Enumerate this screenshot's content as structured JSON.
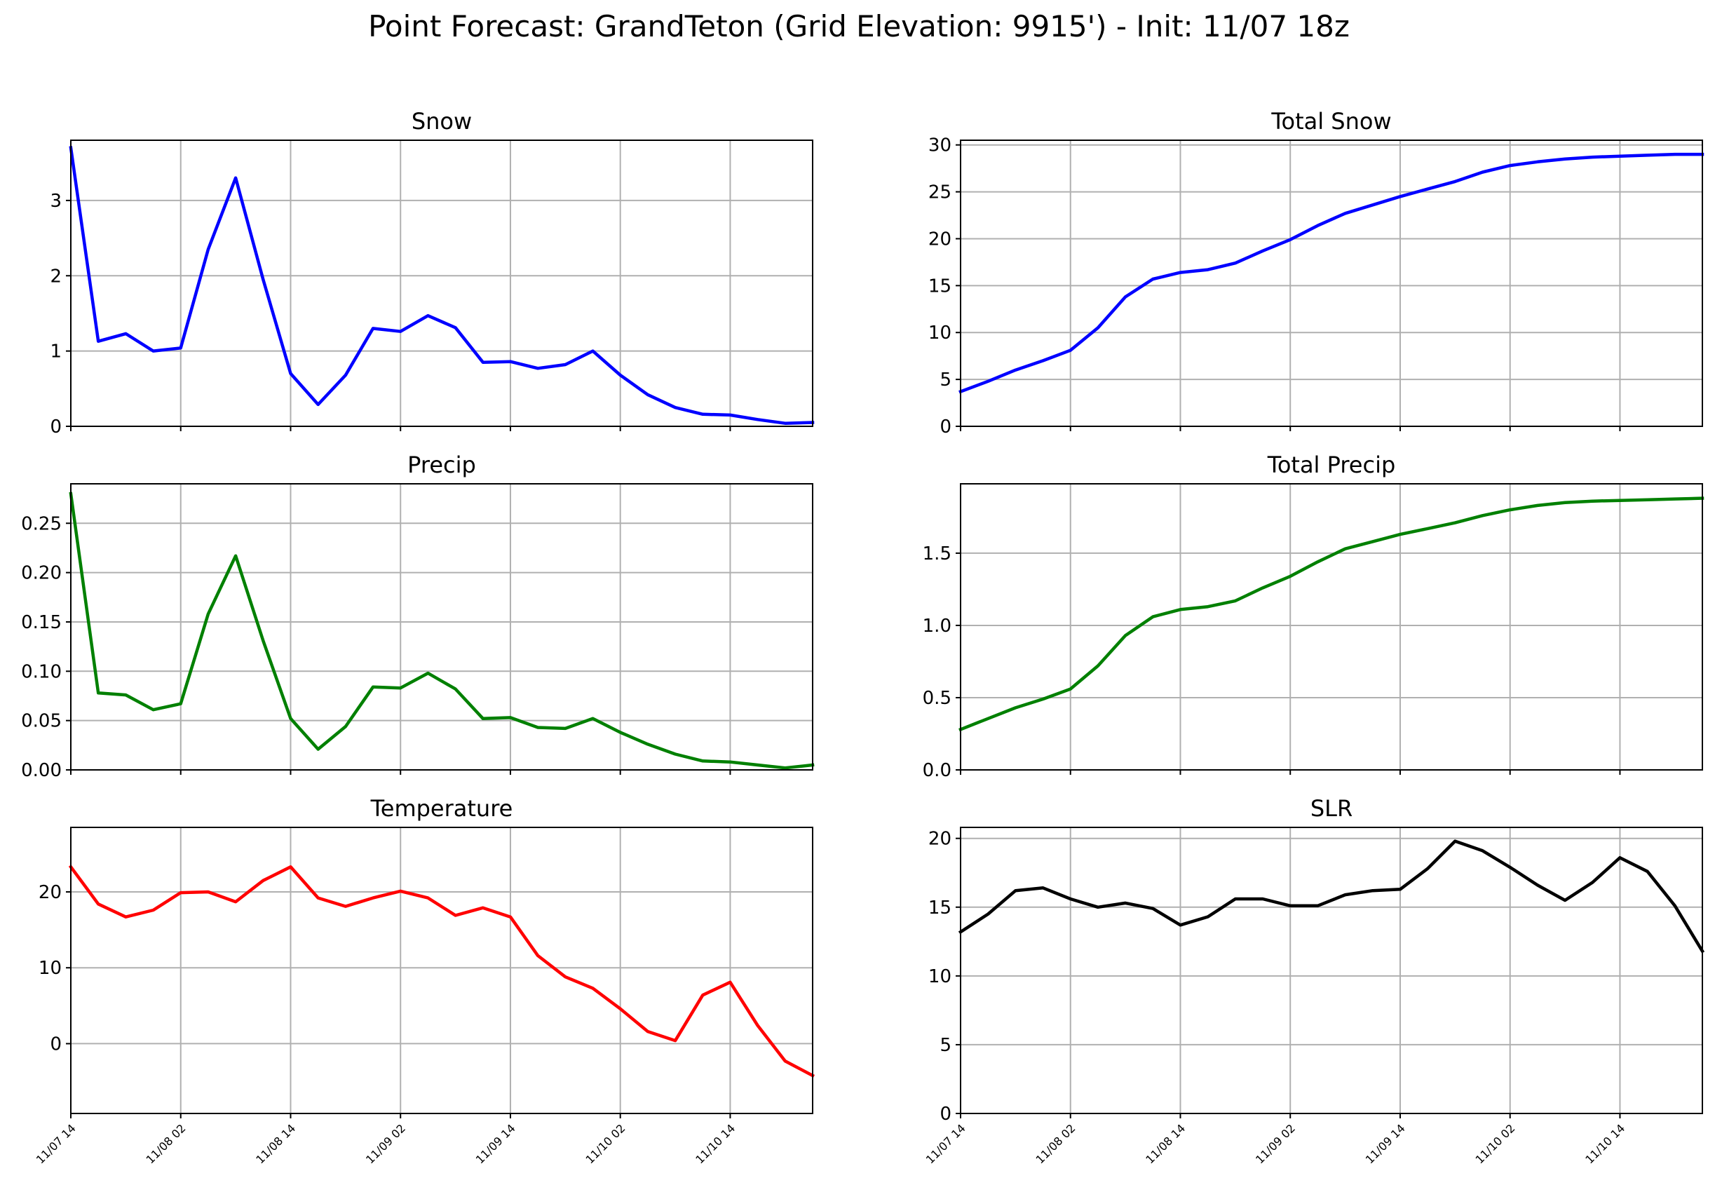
{
  "figure": {
    "title": "Point Forecast: GrandTeton (Grid Elevation: 9915') - Init: 11/07 18z"
  },
  "chart_data": [
    {
      "type": "line",
      "title": "Snow",
      "color": "#0000ff",
      "xlim": [
        0,
        27
      ],
      "ylim": [
        0,
        3.8
      ],
      "yticks": [
        0,
        1,
        2,
        3
      ],
      "ytick_labels": [
        "0",
        "1",
        "2",
        "3"
      ],
      "xticks": [
        0,
        4,
        8,
        12,
        16,
        20,
        24
      ],
      "xtick_labels": [],
      "grid": true,
      "x": [
        0,
        1,
        2,
        3,
        4,
        5,
        6,
        7,
        8,
        9,
        10,
        11,
        12,
        13,
        14,
        15,
        16,
        17,
        18,
        19,
        20,
        21,
        22,
        23,
        24,
        25,
        26,
        27
      ],
      "values": [
        3.7,
        1.13,
        1.23,
        1.0,
        1.04,
        2.35,
        3.3,
        1.95,
        0.7,
        0.29,
        0.68,
        1.3,
        1.26,
        1.47,
        1.31,
        0.85,
        0.86,
        0.77,
        0.82,
        1.0,
        0.68,
        0.42,
        0.25,
        0.16,
        0.15,
        0.09,
        0.04,
        0.05
      ]
    },
    {
      "type": "line",
      "title": "Total Snow",
      "color": "#0000ff",
      "xlim": [
        0,
        27
      ],
      "ylim": [
        0,
        30.5
      ],
      "yticks": [
        0,
        5,
        10,
        15,
        20,
        25,
        30
      ],
      "ytick_labels": [
        "0",
        "5",
        "10",
        "15",
        "20",
        "25",
        "30"
      ],
      "xticks": [
        0,
        4,
        8,
        12,
        16,
        20,
        24
      ],
      "xtick_labels": [],
      "grid": true,
      "x": [
        0,
        1,
        2,
        3,
        4,
        5,
        6,
        7,
        8,
        9,
        10,
        11,
        12,
        13,
        14,
        15,
        16,
        17,
        18,
        19,
        20,
        21,
        22,
        23,
        24,
        25,
        26,
        27
      ],
      "values": [
        3.7,
        4.8,
        6.0,
        7.0,
        8.1,
        10.5,
        13.8,
        15.7,
        16.4,
        16.7,
        17.4,
        18.7,
        19.9,
        21.4,
        22.7,
        23.6,
        24.5,
        25.3,
        26.1,
        27.1,
        27.8,
        28.2,
        28.5,
        28.7,
        28.8,
        28.9,
        29.0,
        29.0
      ]
    },
    {
      "type": "line",
      "title": "Precip",
      "color": "#008000",
      "xlim": [
        0,
        27
      ],
      "ylim": [
        0,
        0.29
      ],
      "yticks": [
        0,
        0.05,
        0.1,
        0.15,
        0.2,
        0.25
      ],
      "ytick_labels": [
        "0.00",
        "0.05",
        "0.10",
        "0.15",
        "0.20",
        "0.25"
      ],
      "xticks": [
        0,
        4,
        8,
        12,
        16,
        20,
        24
      ],
      "xtick_labels": [],
      "grid": true,
      "x": [
        0,
        1,
        2,
        3,
        4,
        5,
        6,
        7,
        8,
        9,
        10,
        11,
        12,
        13,
        14,
        15,
        16,
        17,
        18,
        19,
        20,
        21,
        22,
        23,
        24,
        25,
        26,
        27
      ],
      "values": [
        0.28,
        0.078,
        0.076,
        0.061,
        0.067,
        0.158,
        0.217,
        0.131,
        0.052,
        0.021,
        0.044,
        0.084,
        0.083,
        0.098,
        0.082,
        0.052,
        0.053,
        0.043,
        0.042,
        0.052,
        0.038,
        0.026,
        0.016,
        0.009,
        0.008,
        0.005,
        0.002,
        0.005
      ]
    },
    {
      "type": "line",
      "title": "Total Precip",
      "color": "#008000",
      "xlim": [
        0,
        27
      ],
      "ylim": [
        0,
        1.98
      ],
      "yticks": [
        0,
        0.5,
        1.0,
        1.5
      ],
      "ytick_labels": [
        "0.0",
        "0.5",
        "1.0",
        "1.5"
      ],
      "xticks": [
        0,
        4,
        8,
        12,
        16,
        20,
        24
      ],
      "xtick_labels": [],
      "grid": true,
      "x": [
        0,
        1,
        2,
        3,
        4,
        5,
        6,
        7,
        8,
        9,
        10,
        11,
        12,
        13,
        14,
        15,
        16,
        17,
        18,
        19,
        20,
        21,
        22,
        23,
        24,
        25,
        26,
        27
      ],
      "values": [
        0.28,
        0.355,
        0.43,
        0.49,
        0.56,
        0.72,
        0.93,
        1.06,
        1.11,
        1.13,
        1.17,
        1.26,
        1.34,
        1.44,
        1.53,
        1.58,
        1.63,
        1.67,
        1.71,
        1.76,
        1.8,
        1.83,
        1.85,
        1.86,
        1.865,
        1.87,
        1.875,
        1.88
      ]
    },
    {
      "type": "line",
      "title": "Temperature",
      "color": "#ff0000",
      "xlim": [
        0,
        27
      ],
      "ylim": [
        -9.2,
        28.5
      ],
      "yticks": [
        0,
        10,
        20
      ],
      "ytick_labels": [
        "0",
        "10",
        "20"
      ],
      "xticks": [
        0,
        4,
        8,
        12,
        16,
        20,
        24
      ],
      "xtick_labels": [
        "11/07 14",
        "11/08 02",
        "11/08 14",
        "11/09 02",
        "11/09 14",
        "11/10 02",
        "11/10 14"
      ],
      "grid": true,
      "x": [
        0,
        1,
        2,
        3,
        4,
        5,
        6,
        7,
        8,
        9,
        10,
        11,
        12,
        13,
        14,
        15,
        16,
        17,
        18,
        19,
        20,
        21,
        22,
        23,
        24,
        25,
        26,
        27
      ],
      "values": [
        23.3,
        18.4,
        16.7,
        17.6,
        19.9,
        20.0,
        18.7,
        21.5,
        23.3,
        19.2,
        18.1,
        19.2,
        20.1,
        19.2,
        16.9,
        17.9,
        16.7,
        11.6,
        8.8,
        7.3,
        4.6,
        1.6,
        0.4,
        6.4,
        8.1,
        2.4,
        -2.3,
        -4.2
      ]
    },
    {
      "type": "line",
      "title": "SLR",
      "color": "#000000",
      "xlim": [
        0,
        27
      ],
      "ylim": [
        0,
        20.8
      ],
      "yticks": [
        0,
        5,
        10,
        15,
        20
      ],
      "ytick_labels": [
        "0",
        "5",
        "10",
        "15",
        "20"
      ],
      "xticks": [
        0,
        4,
        8,
        12,
        16,
        20,
        24
      ],
      "xtick_labels": [
        "11/07 14",
        "11/08 02",
        "11/08 14",
        "11/09 02",
        "11/09 14",
        "11/10 02",
        "11/10 14"
      ],
      "grid": true,
      "x": [
        0,
        1,
        2,
        3,
        4,
        5,
        6,
        7,
        8,
        9,
        10,
        11,
        12,
        13,
        14,
        15,
        16,
        17,
        18,
        19,
        20,
        21,
        22,
        23,
        24,
        25,
        26,
        27
      ],
      "values": [
        13.2,
        14.5,
        16.2,
        16.4,
        15.6,
        15.0,
        15.3,
        14.9,
        13.7,
        14.3,
        15.6,
        15.6,
        15.1,
        15.1,
        15.9,
        16.2,
        16.3,
        17.8,
        19.8,
        19.1,
        17.9,
        16.6,
        15.5,
        16.8,
        18.6,
        17.6,
        15.1,
        11.8
      ]
    }
  ]
}
